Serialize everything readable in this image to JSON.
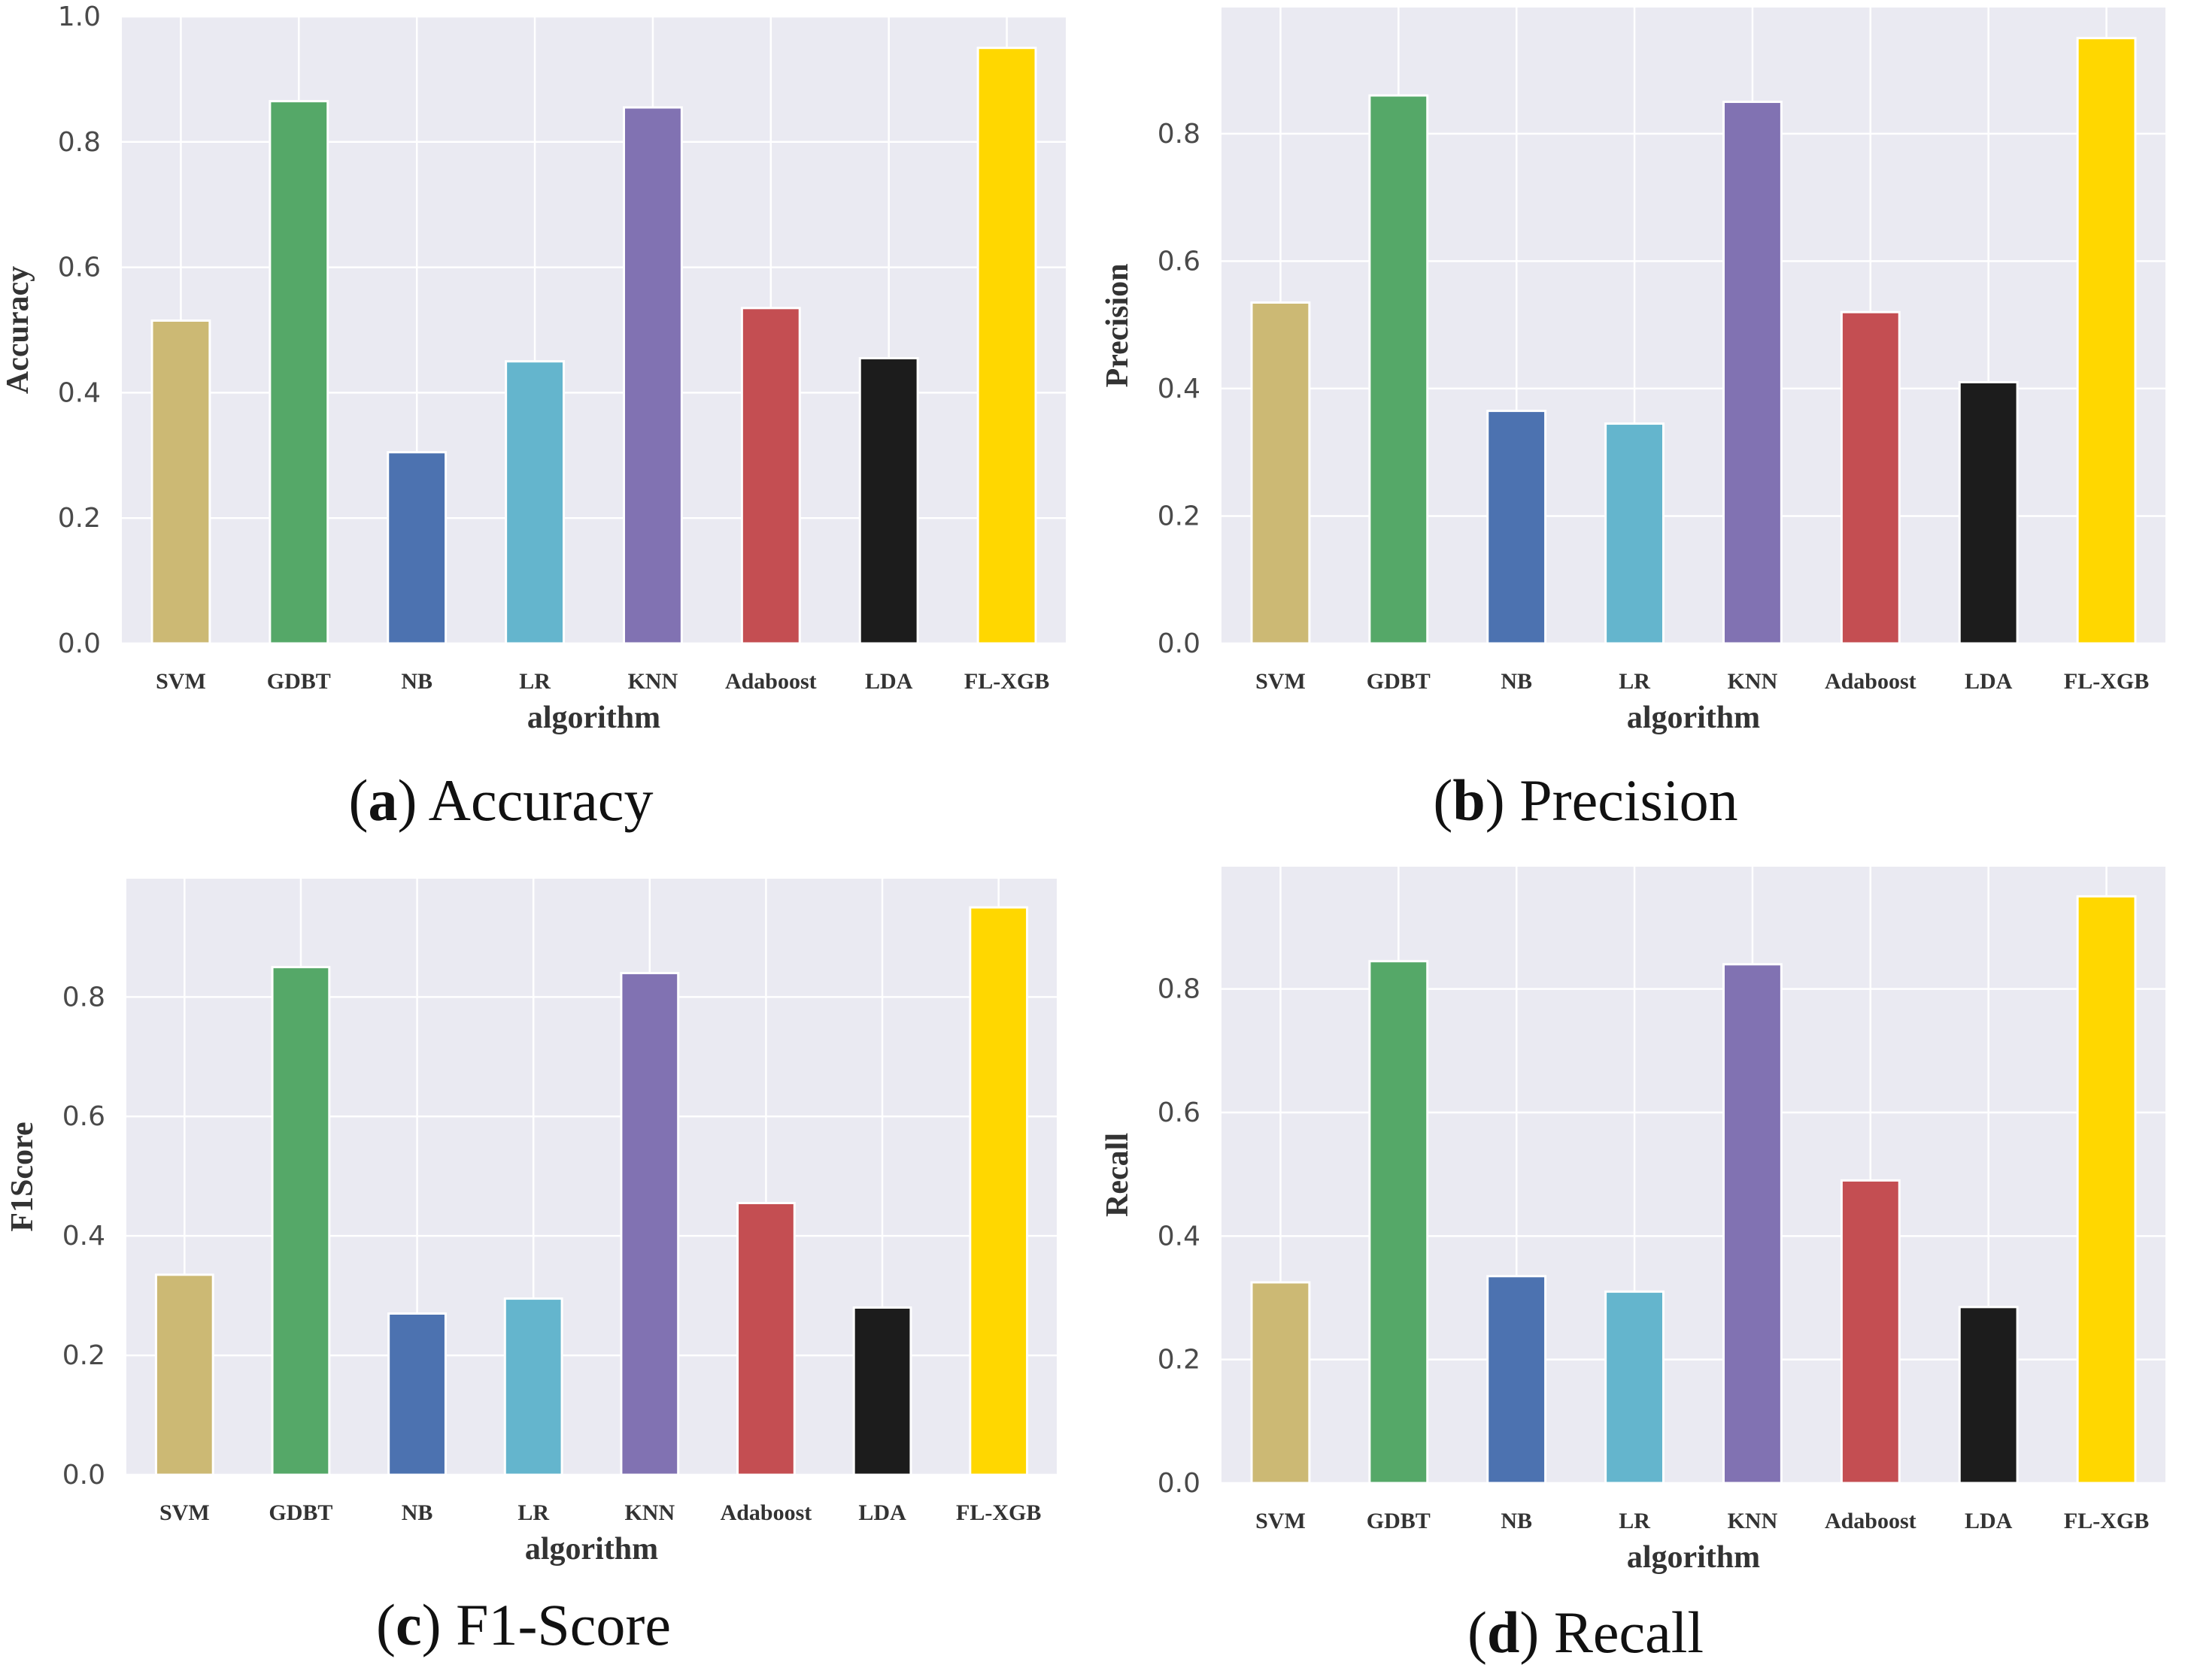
{
  "chart_data": [
    {
      "type": "bar",
      "panel_letter": "a",
      "caption": "Accuracy",
      "xlabel": "algorithm",
      "ylabel": "Accuracy",
      "categories": [
        "SVM",
        "GDBT",
        "NB",
        "LR",
        "KNN",
        "Adaboost",
        "LDA",
        "FL-XGB"
      ],
      "values": [
        0.515,
        0.865,
        0.305,
        0.45,
        0.855,
        0.535,
        0.455,
        0.95
      ],
      "colors": [
        "#ccb974",
        "#55a868",
        "#4c72b0",
        "#64b5cd",
        "#8172b2",
        "#c44e52",
        "#1c1c1c",
        "#ffd700"
      ],
      "ylim": [
        0,
        1.0
      ],
      "yticks": [
        "0.0",
        "0.2",
        "0.4",
        "0.6",
        "0.8",
        "1.0"
      ],
      "grid": true
    },
    {
      "type": "bar",
      "panel_letter": "b",
      "caption": "Precision",
      "xlabel": "algorithm",
      "ylabel": "Precision",
      "categories": [
        "SVM",
        "GDBT",
        "NB",
        "LR",
        "KNN",
        "Adaboost",
        "LDA",
        "FL-XGB"
      ],
      "values": [
        0.535,
        0.86,
        0.365,
        0.345,
        0.85,
        0.52,
        0.41,
        0.95
      ],
      "colors": [
        "#ccb974",
        "#55a868",
        "#4c72b0",
        "#64b5cd",
        "#8172b2",
        "#c44e52",
        "#1c1c1c",
        "#ffd700"
      ],
      "ylim": [
        0,
        0.998
      ],
      "yticks": [
        "0.0",
        "0.2",
        "0.4",
        "0.6",
        "0.8"
      ],
      "grid": true
    },
    {
      "type": "bar",
      "panel_letter": "c",
      "caption": "F1-Score",
      "xlabel": "algorithm",
      "ylabel": "F1Score",
      "categories": [
        "SVM",
        "GDBT",
        "NB",
        "LR",
        "KNN",
        "Adaboost",
        "LDA",
        "FL-XGB"
      ],
      "values": [
        0.335,
        0.85,
        0.27,
        0.295,
        0.84,
        0.455,
        0.28,
        0.95
      ],
      "colors": [
        "#ccb974",
        "#55a868",
        "#4c72b0",
        "#64b5cd",
        "#8172b2",
        "#c44e52",
        "#1c1c1c",
        "#ffd700"
      ],
      "ylim": [
        0,
        0.998
      ],
      "yticks": [
        "0.0",
        "0.2",
        "0.4",
        "0.6",
        "0.8"
      ],
      "grid": true
    },
    {
      "type": "bar",
      "panel_letter": "d",
      "caption": "Recall",
      "xlabel": "algorithm",
      "ylabel": "Recall",
      "categories": [
        "SVM",
        "GDBT",
        "NB",
        "LR",
        "KNN",
        "Adaboost",
        "LDA",
        "FL-XGB"
      ],
      "values": [
        0.325,
        0.845,
        0.335,
        0.31,
        0.84,
        0.49,
        0.285,
        0.95
      ],
      "colors": [
        "#ccb974",
        "#55a868",
        "#4c72b0",
        "#64b5cd",
        "#8172b2",
        "#c44e52",
        "#1c1c1c",
        "#ffd700"
      ],
      "ylim": [
        0,
        0.998
      ],
      "yticks": [
        "0.0",
        "0.2",
        "0.4",
        "0.6",
        "0.8"
      ],
      "grid": true
    }
  ]
}
